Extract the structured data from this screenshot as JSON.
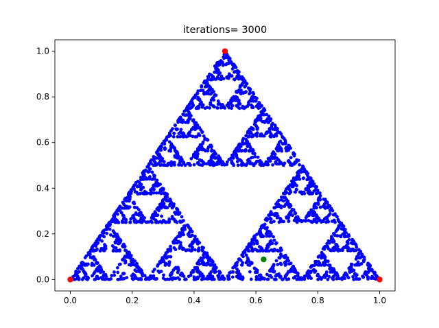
{
  "chart_data": {
    "type": "scatter",
    "title": "iterations= 3000",
    "xlabel": "",
    "ylabel": "",
    "xlim": [
      -0.05,
      1.05
    ],
    "ylim": [
      -0.05,
      1.05
    ],
    "x_ticks": [
      "0.0",
      "0.2",
      "0.4",
      "0.6",
      "0.8",
      "1.0"
    ],
    "y_ticks": [
      "0.0",
      "0.2",
      "0.4",
      "0.6",
      "0.8",
      "1.0"
    ],
    "grid": false,
    "legend": "none",
    "iterations": 3000,
    "series": [
      {
        "kind": "chaos-game-points",
        "color": "#0000ff",
        "count": 3000,
        "vertices": [
          [
            0,
            0
          ],
          [
            1,
            0
          ],
          [
            0.5,
            1
          ]
        ],
        "generation": "random vertex halving (Sierpinski triangle)"
      },
      {
        "kind": "vertices",
        "color": "#ff0000",
        "points": [
          [
            0,
            0
          ],
          [
            1,
            0
          ],
          [
            0.5,
            1
          ]
        ]
      },
      {
        "kind": "start-point",
        "color": "#008000",
        "points": [
          [
            0.625,
            0.088
          ]
        ]
      }
    ]
  }
}
